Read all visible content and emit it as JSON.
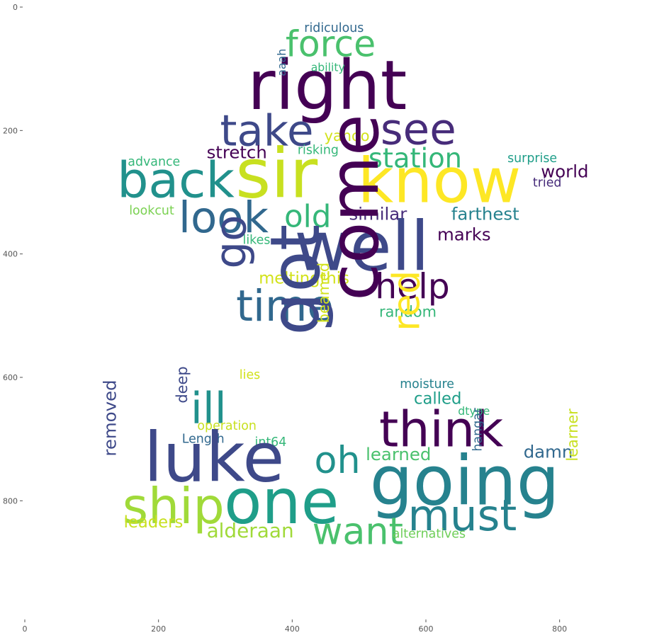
{
  "chart_data": {
    "type": "wordcloud",
    "title": "",
    "xlabel": "",
    "ylabel": "",
    "xlim": [
      0,
      900
    ],
    "ylim": [
      990,
      0
    ],
    "x_ticks": [
      0,
      200,
      400,
      600,
      800
    ],
    "y_ticks": [
      0,
      200,
      400,
      600,
      800
    ],
    "grid": false,
    "colormap": "viridis",
    "words": [
      {
        "text": "right",
        "x": 333,
        "y": 165,
        "size": 110,
        "rotate": 0,
        "color": "#440154"
      },
      {
        "text": "force",
        "x": 390,
        "y": 80,
        "size": 58,
        "rotate": 0,
        "color": "#4ac16d"
      },
      {
        "text": "ridiculous",
        "x": 418,
        "y": 40,
        "size": 20,
        "rotate": 0,
        "color": "#31688e"
      },
      {
        "text": "ability",
        "x": 428,
        "y": 104,
        "size": 18,
        "rotate": 0,
        "color": "#35b779"
      },
      {
        "text": "aaah",
        "x": 390,
        "y": 112,
        "size": 18,
        "rotate": -90,
        "color": "#31688e"
      },
      {
        "text": "take",
        "x": 292,
        "y": 224,
        "size": 70,
        "rotate": 0,
        "color": "#3e4989"
      },
      {
        "text": "see",
        "x": 532,
        "y": 222,
        "size": 70,
        "rotate": 0,
        "color": "#472c7a"
      },
      {
        "text": "yahoo",
        "x": 448,
        "y": 217,
        "size": 24,
        "rotate": 0,
        "color": "#d2e21b"
      },
      {
        "text": "stretch",
        "x": 272,
        "y": 245,
        "size": 28,
        "rotate": 0,
        "color": "#440154"
      },
      {
        "text": "risking",
        "x": 408,
        "y": 238,
        "size": 20,
        "rotate": 0,
        "color": "#35b779"
      },
      {
        "text": "station",
        "x": 514,
        "y": 260,
        "size": 44,
        "rotate": 0,
        "color": "#35b779"
      },
      {
        "text": "advance",
        "x": 154,
        "y": 257,
        "size": 20,
        "rotate": 0,
        "color": "#35b779"
      },
      {
        "text": "surprise",
        "x": 722,
        "y": 251,
        "size": 20,
        "rotate": 0,
        "color": "#1f9e89"
      },
      {
        "text": "back",
        "x": 138,
        "y": 308,
        "size": 80,
        "rotate": 0,
        "color": "#21918c"
      },
      {
        "text": "sir",
        "x": 315,
        "y": 308,
        "size": 110,
        "rotate": 0,
        "color": "#c8e020"
      },
      {
        "text": "know",
        "x": 498,
        "y": 316,
        "size": 100,
        "rotate": 0,
        "color": "#fde725"
      },
      {
        "text": "world",
        "x": 772,
        "y": 276,
        "size": 28,
        "rotate": 0,
        "color": "#440154"
      },
      {
        "text": "tried",
        "x": 760,
        "y": 291,
        "size": 20,
        "rotate": 0,
        "color": "#472c7a"
      },
      {
        "text": "look",
        "x": 230,
        "y": 365,
        "size": 70,
        "rotate": 0,
        "color": "#31688e"
      },
      {
        "text": "old",
        "x": 388,
        "y": 356,
        "size": 50,
        "rotate": 0,
        "color": "#35b779"
      },
      {
        "text": "similar",
        "x": 485,
        "y": 345,
        "size": 28,
        "rotate": 0,
        "color": "#472c7a"
      },
      {
        "text": "farthest",
        "x": 638,
        "y": 345,
        "size": 28,
        "rotate": 0,
        "color": "#26828e"
      },
      {
        "text": "lookcut",
        "x": 156,
        "y": 336,
        "size": 20,
        "rotate": 0,
        "color": "#7ad151"
      },
      {
        "text": "well",
        "x": 403,
        "y": 426,
        "size": 110,
        "rotate": 0,
        "color": "#3e4989"
      },
      {
        "text": "marks",
        "x": 617,
        "y": 378,
        "size": 28,
        "rotate": 0,
        "color": "#440154"
      },
      {
        "text": "likes",
        "x": 326,
        "y": 384,
        "size": 20,
        "rotate": 0,
        "color": "#35b779"
      },
      {
        "text": "go",
        "x": 330,
        "y": 424,
        "size": 70,
        "rotate": -90,
        "color": "#3e4989"
      },
      {
        "text": "help",
        "x": 524,
        "y": 472,
        "size": 56,
        "rotate": 0,
        "color": "#440154"
      },
      {
        "text": "meltingthis",
        "x": 350,
        "y": 448,
        "size": 26,
        "rotate": 0,
        "color": "#d2e21b"
      },
      {
        "text": "time",
        "x": 316,
        "y": 508,
        "size": 70,
        "rotate": 0,
        "color": "#31688e"
      },
      {
        "text": "random",
        "x": 530,
        "y": 502,
        "size": 24,
        "rotate": 0,
        "color": "#35b779"
      },
      {
        "text": "come",
        "x": 528,
        "y": 476,
        "size": 110,
        "rotate": -90,
        "color": "#440154"
      },
      {
        "text": "got",
        "x": 440,
        "y": 532,
        "size": 110,
        "rotate": -90,
        "color": "#3e4989"
      },
      {
        "text": "red",
        "x": 590,
        "y": 525,
        "size": 60,
        "rotate": -90,
        "color": "#fde725"
      },
      {
        "text": "beamed",
        "x": 455,
        "y": 512,
        "size": 24,
        "rotate": -90,
        "color": "#d2e21b"
      },
      {
        "text": "lies",
        "x": 321,
        "y": 602,
        "size": 20,
        "rotate": 0,
        "color": "#d2e21b"
      },
      {
        "text": "moisture",
        "x": 561,
        "y": 617,
        "size": 20,
        "rotate": 0,
        "color": "#26828e"
      },
      {
        "text": "ill",
        "x": 248,
        "y": 674,
        "size": 70,
        "rotate": 0,
        "color": "#21918c"
      },
      {
        "text": "called",
        "x": 582,
        "y": 643,
        "size": 26,
        "rotate": 0,
        "color": "#1f9e89"
      },
      {
        "text": "think",
        "x": 530,
        "y": 712,
        "size": 80,
        "rotate": 0,
        "color": "#440154"
      },
      {
        "text": "deep",
        "x": 243,
        "y": 642,
        "size": 24,
        "rotate": -90,
        "color": "#3e4989"
      },
      {
        "text": "dtype",
        "x": 648,
        "y": 661,
        "size": 18,
        "rotate": 0,
        "color": "#35b779"
      },
      {
        "text": "operation",
        "x": 258,
        "y": 685,
        "size": 20,
        "rotate": 0,
        "color": "#c8e020"
      },
      {
        "text": "Length",
        "x": 235,
        "y": 706,
        "size": 20,
        "rotate": 0,
        "color": "#31688e"
      },
      {
        "text": "int64",
        "x": 344,
        "y": 711,
        "size": 20,
        "rotate": 0,
        "color": "#35b779"
      },
      {
        "text": "luke",
        "x": 178,
        "y": 768,
        "size": 110,
        "rotate": 0,
        "color": "#3e4989"
      },
      {
        "text": "oh",
        "x": 433,
        "y": 755,
        "size": 60,
        "rotate": 0,
        "color": "#21918c"
      },
      {
        "text": "learned",
        "x": 510,
        "y": 734,
        "size": 28,
        "rotate": 0,
        "color": "#4ac16d"
      },
      {
        "text": "damn",
        "x": 746,
        "y": 730,
        "size": 28,
        "rotate": 0,
        "color": "#31688e"
      },
      {
        "text": "hangar",
        "x": 683,
        "y": 720,
        "size": 20,
        "rotate": -90,
        "color": "#31688e"
      },
      {
        "text": "learner",
        "x": 827,
        "y": 736,
        "size": 24,
        "rotate": -90,
        "color": "#c8e020"
      },
      {
        "text": "removed",
        "x": 136,
        "y": 728,
        "size": 28,
        "rotate": -90,
        "color": "#3e4989"
      },
      {
        "text": "going",
        "x": 516,
        "y": 806,
        "size": 110,
        "rotate": 0,
        "color": "#26828e"
      },
      {
        "text": "ship",
        "x": 146,
        "y": 836,
        "size": 80,
        "rotate": 0,
        "color": "#a0da39"
      },
      {
        "text": "one",
        "x": 298,
        "y": 836,
        "size": 100,
        "rotate": 0,
        "color": "#1f9e89"
      },
      {
        "text": "must",
        "x": 573,
        "y": 848,
        "size": 70,
        "rotate": 0,
        "color": "#26828e"
      },
      {
        "text": "leaders",
        "x": 148,
        "y": 843,
        "size": 26,
        "rotate": 0,
        "color": "#c8e020"
      },
      {
        "text": "alderaan",
        "x": 272,
        "y": 859,
        "size": 32,
        "rotate": 0,
        "color": "#a0da39"
      },
      {
        "text": "want",
        "x": 430,
        "y": 870,
        "size": 60,
        "rotate": 0,
        "color": "#4ac16d"
      },
      {
        "text": "alternatives",
        "x": 550,
        "y": 860,
        "size": 20,
        "rotate": 0,
        "color": "#6ece58"
      }
    ]
  }
}
